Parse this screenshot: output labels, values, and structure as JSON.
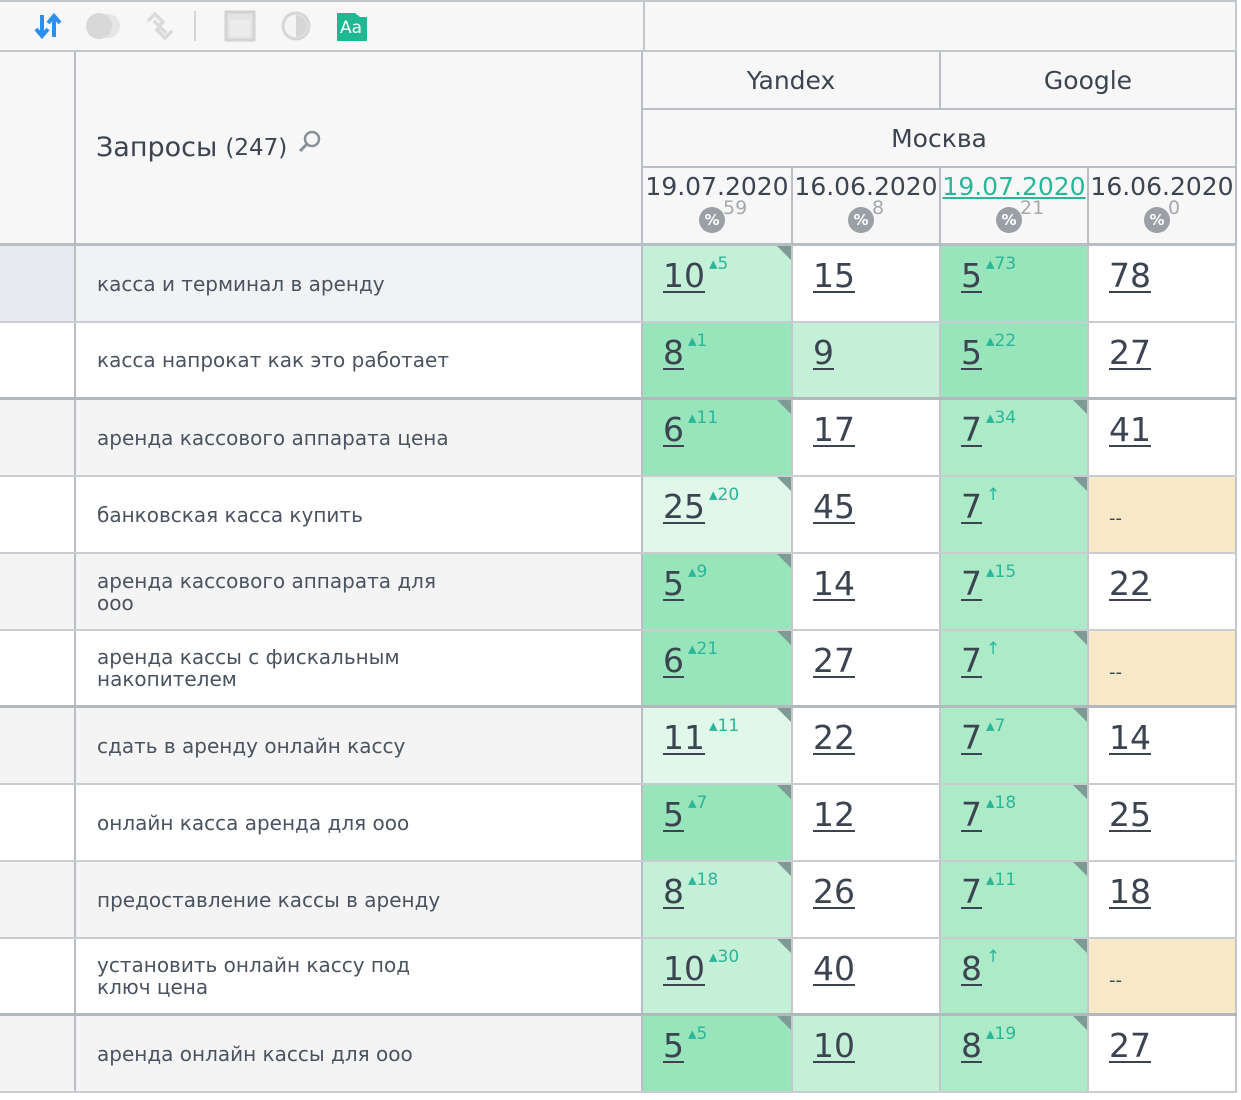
{
  "toolbar": {
    "icons": [
      "sort-icon",
      "toggle-icon",
      "link-icon",
      "window-icon",
      "contrast-icon",
      "font-icon"
    ],
    "font_icon_label": "Aa",
    "accent": "#1fb892"
  },
  "header": {
    "queries_label": "Запросы",
    "queries_count": "(247)",
    "engines": [
      "Yandex",
      "Google"
    ],
    "region": "Москва",
    "dates": [
      {
        "date": "19.07.2020",
        "pct": "59",
        "active": false
      },
      {
        "date": "16.06.2020",
        "pct": "8",
        "active": false
      },
      {
        "date": "19.07.2020",
        "pct": "21",
        "active": true
      },
      {
        "date": "16.06.2020",
        "pct": "0",
        "active": false
      }
    ],
    "pct_symbol": "%"
  },
  "rows": [
    {
      "query": "касса и терминал в аренду",
      "cells": [
        {
          "v": "10",
          "d": "5",
          "c": "light",
          "k": 1
        },
        {
          "v": "15",
          "c": "white"
        },
        {
          "v": "5",
          "d": "73",
          "c": "dark"
        },
        {
          "v": "78",
          "c": "white"
        }
      ]
    },
    {
      "query": "касса напрокат как это работает",
      "cells": [
        {
          "v": "8",
          "d": "1",
          "c": "dark"
        },
        {
          "v": "9",
          "c": "light"
        },
        {
          "v": "5",
          "d": "22",
          "c": "dark"
        },
        {
          "v": "27",
          "c": "white"
        }
      ]
    },
    {
      "query": "аренда кассового аппарата цена",
      "cells": [
        {
          "v": "6",
          "d": "11",
          "c": "dark",
          "k": 1
        },
        {
          "v": "17",
          "c": "white"
        },
        {
          "v": "7",
          "d": "34",
          "c": "med",
          "k": 1
        },
        {
          "v": "41",
          "c": "white"
        }
      ]
    },
    {
      "query": "банковская касса купить",
      "cells": [
        {
          "v": "25",
          "d": "20",
          "c": "vlight",
          "k": 1
        },
        {
          "v": "45",
          "c": "white"
        },
        {
          "v": "7",
          "d": "↑",
          "c": "med",
          "k": 1
        },
        {
          "v": "--",
          "c": "beige"
        }
      ]
    },
    {
      "query": "аренда кассового аппарата для ооо",
      "cells": [
        {
          "v": "5",
          "d": "9",
          "c": "dark",
          "k": 1
        },
        {
          "v": "14",
          "c": "white"
        },
        {
          "v": "7",
          "d": "15",
          "c": "med"
        },
        {
          "v": "22",
          "c": "white"
        }
      ]
    },
    {
      "query": "аренда кассы с фискальным накопителем",
      "cells": [
        {
          "v": "6",
          "d": "21",
          "c": "dark",
          "k": 1
        },
        {
          "v": "27",
          "c": "white"
        },
        {
          "v": "7",
          "d": "↑",
          "c": "med",
          "k": 1
        },
        {
          "v": "--",
          "c": "beige"
        }
      ]
    },
    {
      "query": "сдать в аренду онлайн кассу",
      "cells": [
        {
          "v": "11",
          "d": "11",
          "c": "vlight",
          "k": 1
        },
        {
          "v": "22",
          "c": "white"
        },
        {
          "v": "7",
          "d": "7",
          "c": "med",
          "k": 1
        },
        {
          "v": "14",
          "c": "white"
        }
      ]
    },
    {
      "query": "онлайн касса аренда для ооо",
      "cells": [
        {
          "v": "5",
          "d": "7",
          "c": "dark",
          "k": 1
        },
        {
          "v": "12",
          "c": "white"
        },
        {
          "v": "7",
          "d": "18",
          "c": "med",
          "k": 1
        },
        {
          "v": "25",
          "c": "white"
        }
      ]
    },
    {
      "query": "предоставление кассы в аренду",
      "cells": [
        {
          "v": "8",
          "d": "18",
          "c": "light",
          "k": 1
        },
        {
          "v": "26",
          "c": "white"
        },
        {
          "v": "7",
          "d": "11",
          "c": "med",
          "k": 1
        },
        {
          "v": "18",
          "c": "white"
        }
      ]
    },
    {
      "query": "установить онлайн кассу под ключ цена",
      "cells": [
        {
          "v": "10",
          "d": "30",
          "c": "light",
          "k": 1
        },
        {
          "v": "40",
          "c": "white"
        },
        {
          "v": "8",
          "d": "↑",
          "c": "med",
          "k": 1
        },
        {
          "v": "--",
          "c": "beige"
        }
      ]
    },
    {
      "query": "аренда онлайн кассы для ооо",
      "cells": [
        {
          "v": "5",
          "d": "5",
          "c": "dark",
          "k": 1
        },
        {
          "v": "10",
          "c": "light"
        },
        {
          "v": "8",
          "d": "19",
          "c": "med",
          "k": 1
        },
        {
          "v": "27",
          "c": "white"
        }
      ]
    }
  ]
}
